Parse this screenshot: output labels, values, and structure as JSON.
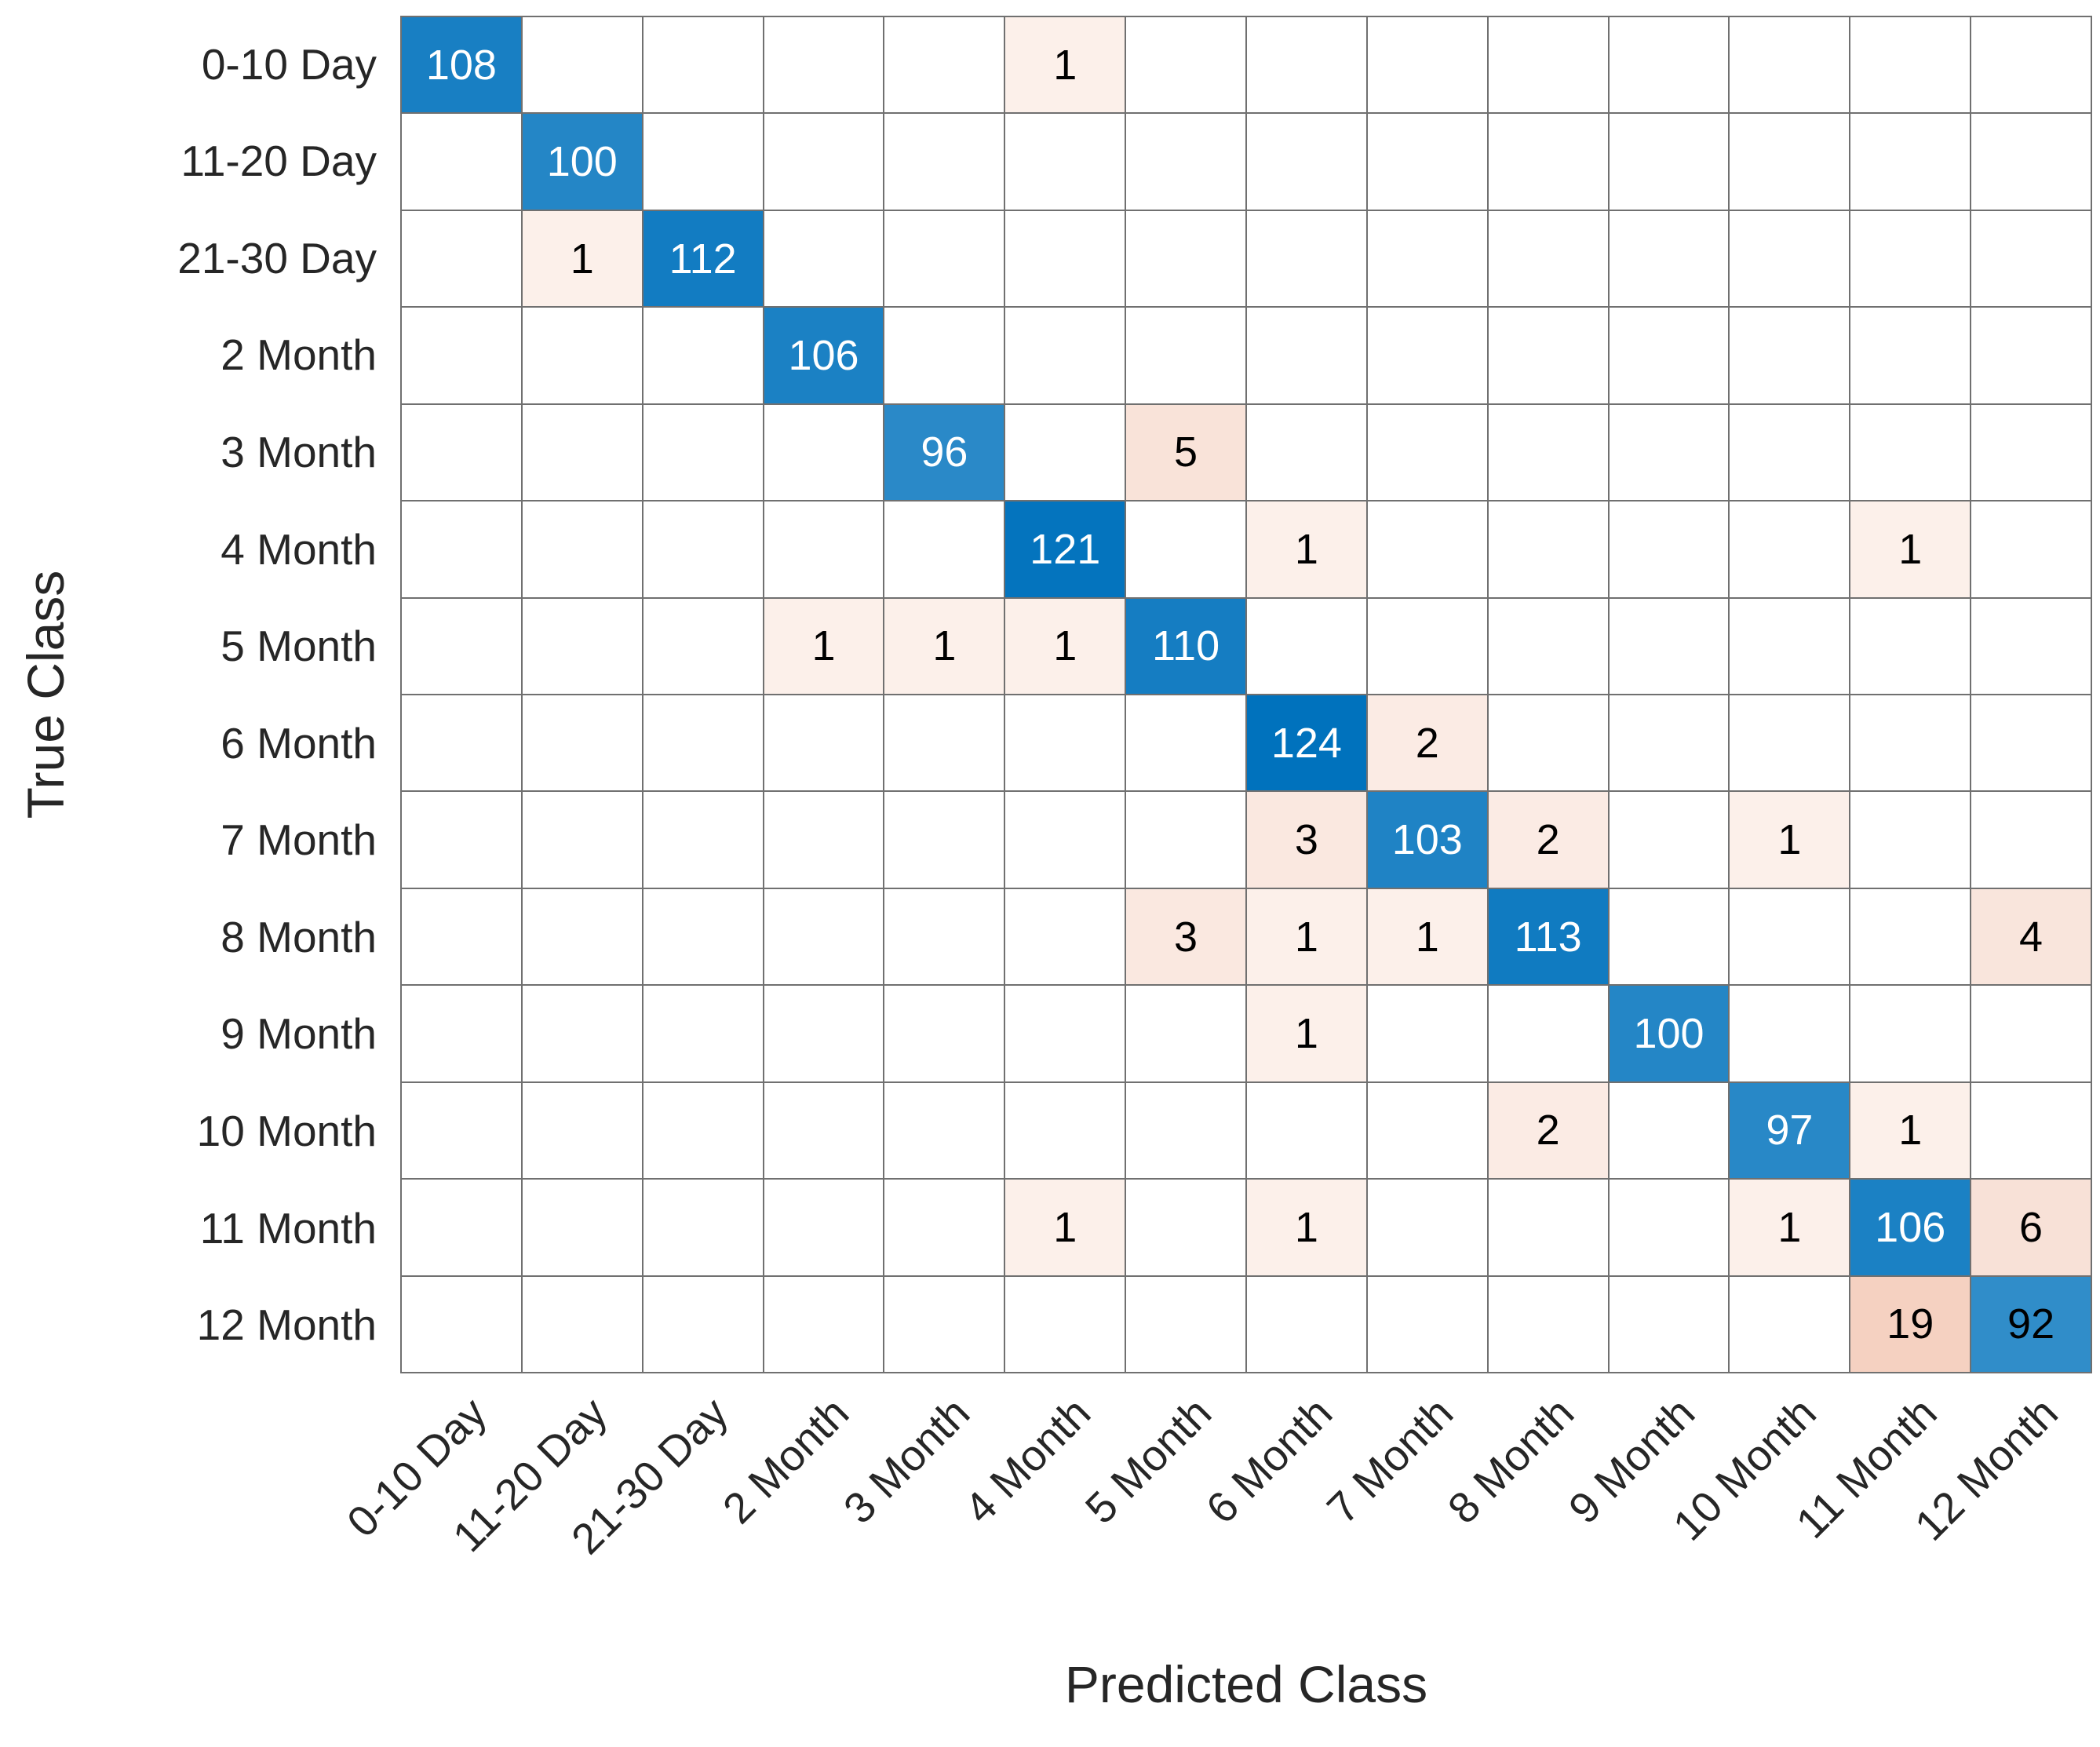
{
  "chart_data": {
    "type": "heatmap",
    "subtype": "confusion-matrix",
    "title": "",
    "xlabel": "Predicted Class",
    "ylabel": "True Class",
    "classes": [
      "0-10 Day",
      "11-20 Day",
      "21-30 Day",
      "2 Month",
      "3 Month",
      "4 Month",
      "5 Month",
      "6 Month",
      "7 Month",
      "8 Month",
      "9 Month",
      "10 Month",
      "11 Month",
      "12 Month"
    ],
    "matrix": [
      [
        108,
        0,
        0,
        0,
        0,
        1,
        0,
        0,
        0,
        0,
        0,
        0,
        0,
        0
      ],
      [
        0,
        100,
        0,
        0,
        0,
        0,
        0,
        0,
        0,
        0,
        0,
        0,
        0,
        0
      ],
      [
        0,
        1,
        112,
        0,
        0,
        0,
        0,
        0,
        0,
        0,
        0,
        0,
        0,
        0
      ],
      [
        0,
        0,
        0,
        106,
        0,
        0,
        0,
        0,
        0,
        0,
        0,
        0,
        0,
        0
      ],
      [
        0,
        0,
        0,
        0,
        96,
        0,
        5,
        0,
        0,
        0,
        0,
        0,
        0,
        0
      ],
      [
        0,
        0,
        0,
        0,
        0,
        121,
        0,
        1,
        0,
        0,
        0,
        0,
        1,
        0
      ],
      [
        0,
        0,
        0,
        1,
        1,
        1,
        110,
        0,
        0,
        0,
        0,
        0,
        0,
        0
      ],
      [
        0,
        0,
        0,
        0,
        0,
        0,
        0,
        124,
        2,
        0,
        0,
        0,
        0,
        0
      ],
      [
        0,
        0,
        0,
        0,
        0,
        0,
        0,
        3,
        103,
        2,
        0,
        1,
        0,
        0
      ],
      [
        0,
        0,
        0,
        0,
        0,
        0,
        3,
        1,
        1,
        113,
        0,
        0,
        0,
        4
      ],
      [
        0,
        0,
        0,
        0,
        0,
        0,
        0,
        1,
        0,
        0,
        100,
        0,
        0,
        0
      ],
      [
        0,
        0,
        0,
        0,
        0,
        0,
        0,
        0,
        0,
        2,
        0,
        97,
        1,
        0
      ],
      [
        0,
        0,
        0,
        0,
        0,
        1,
        0,
        1,
        0,
        0,
        0,
        1,
        106,
        6
      ],
      [
        0,
        0,
        0,
        0,
        0,
        0,
        0,
        0,
        0,
        0,
        0,
        0,
        19,
        92
      ]
    ],
    "colors": {
      "diagonal_base": "#0072BD",
      "off_diagonal_base": "#D95319",
      "grid_line": "#707070",
      "label_text": "#262626",
      "cell_text_light": "#FFFFFF",
      "cell_text_dark": "#000000"
    },
    "layout": {
      "grid_on": true,
      "x_tick_rotation_deg": 45,
      "legend": "none"
    }
  }
}
